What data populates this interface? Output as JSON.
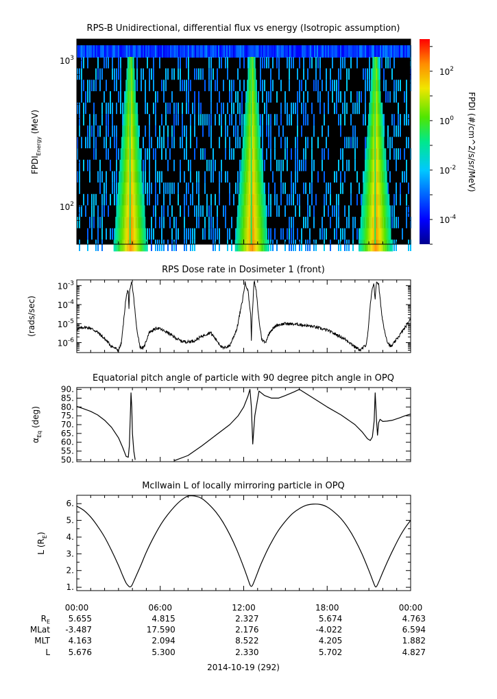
{
  "chart_data": [
    {
      "type": "heatmap",
      "title": "RPS-B  Unidirectional, differential flux vs energy (Isotropic assumption)",
      "ylabel_main": "FPDI",
      "ylabel_sub": "Energy",
      "ylabel_unit": "(MeV)",
      "y_scale": "log",
      "ylim": [
        55,
        1400
      ],
      "yticks": [
        {
          "value": 100,
          "base": "10",
          "exp": "2"
        },
        {
          "value": 1000,
          "base": "10",
          "exp": "3"
        }
      ],
      "xlim_hours": [
        0,
        24
      ],
      "colorbar": {
        "label": "FPDI (#/cm^2/s/sr/MeV)",
        "log_range": [
          -5,
          3.3
        ],
        "ticks": [
          {
            "exp": "2",
            "value": 2
          },
          {
            "exp": "0",
            "value": 0
          },
          {
            "exp": "-2",
            "value": -2
          },
          {
            "exp": "-4",
            "value": -4
          }
        ]
      },
      "peaks_hours": [
        3.83,
        12.55,
        21.45
      ]
    },
    {
      "type": "line",
      "title": "RPS  Dose rate in Dosimeter 1 (front)",
      "ylabel": "(rads/sec)",
      "y_scale": "log",
      "ylim": [
        3e-07,
        0.002
      ],
      "yticks": [
        {
          "exp": "-3",
          "value": -3
        },
        {
          "exp": "-4",
          "value": -4
        },
        {
          "exp": "-5",
          "value": -5
        },
        {
          "exp": "-6",
          "value": -6
        }
      ],
      "tick_base": "10",
      "x": [
        0,
        0.5,
        1,
        1.5,
        2,
        2.5,
        3,
        3.2,
        3.35,
        3.5,
        3.65,
        3.7,
        3.75,
        3.8,
        3.95,
        4.1,
        4.3,
        4.55,
        4.8,
        5.2,
        5.8,
        6.5,
        7,
        7.5,
        8,
        8.5,
        9,
        9.6,
        10,
        10.5,
        11,
        11.5,
        11.9,
        12.1,
        12.3,
        12.5,
        12.55,
        12.6,
        12.75,
        12.9,
        13.1,
        13.3,
        13.55,
        13.9,
        14.4,
        15,
        16,
        17,
        18,
        19,
        19.5,
        20,
        20.4,
        20.8,
        20.95,
        21.1,
        21.25,
        21.35,
        21.45,
        21.55,
        21.7,
        21.9,
        22.1,
        22.35,
        22.6,
        23,
        23.5,
        24
      ],
      "values": [
        5e-06,
        6.5e-06,
        5.8e-06,
        3.5e-06,
        1.6e-06,
        6.5e-07,
        4e-07,
        9e-07,
        1e-05,
        0.00013,
        0.0006,
        0.0004,
        5e-05,
        0.0005,
        0.0016,
        0.0002,
        6e-06,
        6e-07,
        5e-07,
        3.5e-06,
        6e-06,
        3.5e-06,
        2e-06,
        1.2e-06,
        1.1e-06,
        1.3e-06,
        2.2e-06,
        3.5e-06,
        1.5e-06,
        5e-07,
        7e-07,
        5e-06,
        0.00015,
        0.0014,
        0.0006,
        3e-05,
        1.5e-06,
        2e-05,
        0.0018,
        0.0005,
        1.5e-05,
        1.5e-06,
        1e-06,
        4e-06,
        8.5e-06,
        1e-05,
        9e-06,
        7e-06,
        4.5e-06,
        2e-06,
        1.2e-06,
        6e-07,
        4e-07,
        8e-07,
        4e-06,
        0.0001,
        0.0007,
        0.0014,
        0.0002,
        0.0017,
        0.0012,
        4e-05,
        5e-06,
        1e-06,
        6e-07,
        1.5e-06,
        5e-06,
        1.7e-05
      ]
    },
    {
      "type": "line",
      "title": "Equatorial pitch angle of particle with 90 degree pitch angle in OPQ",
      "ylabel": "α",
      "ylabel_sub": "Eq",
      "ylabel_unit": "(deg)",
      "ylim": [
        49,
        91
      ],
      "yticks": [
        "90.",
        "85.",
        "80.",
        "75.",
        "70.",
        "65.",
        "60.",
        "55.",
        "50."
      ],
      "segments": [
        {
          "x": [
            0,
            0.5,
            1,
            1.5,
            2,
            2.5,
            3,
            3.3,
            3.55,
            3.7,
            3.78,
            3.85,
            3.9,
            3.95,
            4.0,
            4.1,
            4.2
          ],
          "values": [
            80.3,
            79,
            77.5,
            75.5,
            72.5,
            68.5,
            62.5,
            57,
            52,
            51.5,
            58,
            75,
            88,
            80,
            65,
            55,
            50
          ]
        },
        {
          "x": [
            7.0,
            8,
            9,
            10,
            11,
            11.6,
            12,
            12.3,
            12.45,
            12.55,
            12.65,
            12.8,
            13.1,
            13.5,
            14.0,
            14.5,
            15,
            15.6,
            16,
            17,
            18,
            19,
            20,
            20.5,
            20.9,
            21.1,
            21.25,
            21.38,
            21.45,
            21.55,
            21.62,
            21.7,
            21.8,
            22.0,
            22.3,
            22.7,
            23.2,
            23.6,
            24
          ],
          "values": [
            49.5,
            52.5,
            58,
            64,
            70,
            75,
            80,
            86,
            90,
            80,
            59,
            75,
            89,
            86.5,
            85,
            85,
            86.5,
            88.5,
            90,
            85,
            80,
            75.5,
            70,
            66,
            62,
            61,
            63,
            72,
            88,
            72,
            64,
            71,
            73,
            71.8,
            72,
            72.5,
            73.8,
            75,
            76
          ]
        }
      ]
    },
    {
      "type": "line",
      "title": "McIlwain L of locally mirroring particle in OPQ",
      "ylabel": "L (R",
      "ylabel_sub": "E",
      "ylabel_unit": ")",
      "ylim": [
        0.8,
        6.5
      ],
      "yticks": [
        "6.",
        "5.",
        "4.",
        "3.",
        "2.",
        "1."
      ],
      "x": [
        0,
        0.5,
        1,
        1.5,
        2,
        2.5,
        3,
        3.3,
        3.55,
        3.75,
        3.83,
        3.95,
        4.2,
        4.6,
        5,
        5.5,
        6,
        6.5,
        7,
        7.5,
        8,
        8.5,
        9,
        9.5,
        10,
        10.5,
        11,
        11.5,
        12,
        12.3,
        12.45,
        12.55,
        12.65,
        12.85,
        13.2,
        13.6,
        14,
        14.5,
        15,
        15.5,
        16,
        16.5,
        17,
        17.5,
        18,
        18.5,
        19,
        19.5,
        20,
        20.5,
        21,
        21.3,
        21.45,
        21.55,
        21.7,
        22,
        22.4,
        22.8,
        23.2,
        23.6,
        24
      ],
      "values": [
        5.85,
        5.6,
        5.2,
        4.65,
        4.0,
        3.2,
        2.3,
        1.7,
        1.25,
        1.05,
        1.02,
        1.1,
        1.55,
        2.3,
        3.1,
        3.95,
        4.7,
        5.3,
        5.8,
        6.2,
        6.45,
        6.45,
        6.3,
        5.95,
        5.5,
        4.9,
        4.15,
        3.25,
        2.2,
        1.5,
        1.15,
        1.05,
        1.15,
        1.55,
        2.3,
        3.05,
        3.7,
        4.4,
        4.95,
        5.4,
        5.7,
        5.9,
        5.97,
        5.95,
        5.8,
        5.5,
        5.1,
        4.55,
        3.85,
        3.0,
        2.0,
        1.35,
        1.05,
        1.05,
        1.3,
        1.9,
        2.65,
        3.35,
        4.0,
        4.55,
        5.0
      ]
    }
  ],
  "x_axis": {
    "tick_labels": [
      "00:00",
      "06:00",
      "12:00",
      "18:00",
      "00:00"
    ],
    "row_labels": [
      "R",
      "MLat",
      "MLT",
      "L"
    ],
    "row_label_sub": [
      "E",
      "",
      "",
      ""
    ],
    "rows": [
      [
        "5.655",
        "4.815",
        "2.327",
        "5.674",
        "4.763"
      ],
      [
        "-3.487",
        "17.590",
        "2.176",
        "-4.022",
        "6.594"
      ],
      [
        "4.163",
        "2.094",
        "8.522",
        "4.205",
        "1.882"
      ],
      [
        "5.676",
        "5.300",
        "2.330",
        "5.702",
        "4.827"
      ]
    ],
    "date_label": "2014-10-19 (292)"
  },
  "colors": {
    "frame": "#000000",
    "line": "#000000",
    "heatmap_bg": "#000000"
  }
}
